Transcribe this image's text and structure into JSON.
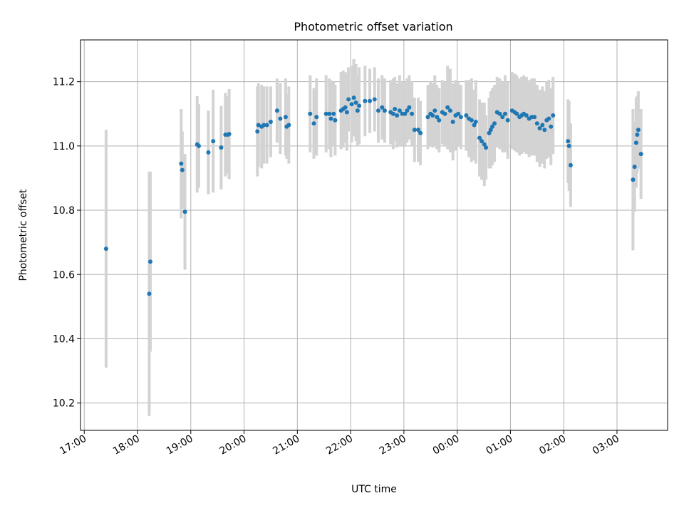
{
  "chart_data": {
    "type": "scatter",
    "title": "Photometric offset variation",
    "xlabel": "UTC time",
    "ylabel": "Photometric offset",
    "x_unit": "hours since 17:00 UTC",
    "xlim": [
      -0.07,
      10.95
    ],
    "ylim": [
      10.115,
      11.33
    ],
    "x_ticks": [
      {
        "value": 0,
        "label": "17:00"
      },
      {
        "value": 1,
        "label": "18:00"
      },
      {
        "value": 2,
        "label": "19:00"
      },
      {
        "value": 3,
        "label": "20:00"
      },
      {
        "value": 4,
        "label": "21:00"
      },
      {
        "value": 5,
        "label": "22:00"
      },
      {
        "value": 6,
        "label": "23:00"
      },
      {
        "value": 7,
        "label": "00:00"
      },
      {
        "value": 8,
        "label": "01:00"
      },
      {
        "value": 9,
        "label": "02:00"
      },
      {
        "value": 10,
        "label": "03:00"
      }
    ],
    "y_ticks": [
      {
        "value": 10.2,
        "label": "10.2"
      },
      {
        "value": 10.4,
        "label": "10.4"
      },
      {
        "value": 10.6,
        "label": "10.6"
      },
      {
        "value": 10.8,
        "label": "10.8"
      },
      {
        "value": 11.0,
        "label": "11.0"
      },
      {
        "value": 11.2,
        "label": "11.2"
      }
    ],
    "grid": true,
    "series": [
      {
        "name": "offset",
        "color": "#1f77b4",
        "error_color": "#d3d3d3",
        "points": [
          [
            0.41,
            10.68,
            0.37
          ],
          [
            1.22,
            10.54,
            0.38
          ],
          [
            1.24,
            10.64,
            0.28
          ],
          [
            1.82,
            10.945,
            0.17
          ],
          [
            1.84,
            10.925,
            0.12
          ],
          [
            1.89,
            10.795,
            0.18
          ],
          [
            2.12,
            11.005,
            0.15
          ],
          [
            2.15,
            11.0,
            0.13
          ],
          [
            2.33,
            10.98,
            0.13
          ],
          [
            2.42,
            11.015,
            0.16
          ],
          [
            2.57,
            10.995,
            0.13
          ],
          [
            2.65,
            11.035,
            0.13
          ],
          [
            2.7,
            11.035,
            0.12
          ],
          [
            2.72,
            11.037,
            0.14
          ],
          [
            3.25,
            11.045,
            0.14
          ],
          [
            3.27,
            11.065,
            0.13
          ],
          [
            3.33,
            11.06,
            0.13
          ],
          [
            3.37,
            11.065,
            0.12
          ],
          [
            3.43,
            11.065,
            0.12
          ],
          [
            3.5,
            11.075,
            0.11
          ],
          [
            3.62,
            11.11,
            0.1
          ],
          [
            3.68,
            11.085,
            0.11
          ],
          [
            3.78,
            11.09,
            0.12
          ],
          [
            3.8,
            11.06,
            0.1
          ],
          [
            3.84,
            11.065,
            0.12
          ],
          [
            4.24,
            11.1,
            0.12
          ],
          [
            4.31,
            11.07,
            0.11
          ],
          [
            4.36,
            11.09,
            0.12
          ],
          [
            4.54,
            11.1,
            0.12
          ],
          [
            4.6,
            11.1,
            0.11
          ],
          [
            4.63,
            11.085,
            0.12
          ],
          [
            4.68,
            11.1,
            0.1
          ],
          [
            4.71,
            11.08,
            0.11
          ],
          [
            4.82,
            11.11,
            0.12
          ],
          [
            4.86,
            11.115,
            0.12
          ],
          [
            4.9,
            11.12,
            0.11
          ],
          [
            4.93,
            11.105,
            0.12
          ],
          [
            4.96,
            11.145,
            0.1
          ],
          [
            5.02,
            11.13,
            0.12
          ],
          [
            5.06,
            11.15,
            0.12
          ],
          [
            5.1,
            11.135,
            0.12
          ],
          [
            5.13,
            11.11,
            0.11
          ],
          [
            5.16,
            11.125,
            0.12
          ],
          [
            5.27,
            11.14,
            0.11
          ],
          [
            5.36,
            11.14,
            0.1
          ],
          [
            5.45,
            11.145,
            0.1
          ],
          [
            5.52,
            11.11,
            0.1
          ],
          [
            5.59,
            11.12,
            0.1
          ],
          [
            5.64,
            11.11,
            0.1
          ],
          [
            5.75,
            11.105,
            0.1
          ],
          [
            5.8,
            11.1,
            0.11
          ],
          [
            5.83,
            11.115,
            0.1
          ],
          [
            5.87,
            11.095,
            0.1
          ],
          [
            5.92,
            11.11,
            0.11
          ],
          [
            5.97,
            11.1,
            0.1
          ],
          [
            6.02,
            11.1,
            0.1
          ],
          [
            6.06,
            11.11,
            0.1
          ],
          [
            6.1,
            11.12,
            0.1
          ],
          [
            6.15,
            11.1,
            0.1
          ],
          [
            6.2,
            11.05,
            0.1
          ],
          [
            6.27,
            11.05,
            0.1
          ],
          [
            6.31,
            11.04,
            0.1
          ],
          [
            6.45,
            11.09,
            0.1
          ],
          [
            6.5,
            11.1,
            0.1
          ],
          [
            6.54,
            11.095,
            0.1
          ],
          [
            6.58,
            11.11,
            0.11
          ],
          [
            6.62,
            11.09,
            0.1
          ],
          [
            6.66,
            11.08,
            0.1
          ],
          [
            6.72,
            11.105,
            0.1
          ],
          [
            6.77,
            11.1,
            0.1
          ],
          [
            6.82,
            11.12,
            0.13
          ],
          [
            6.87,
            11.11,
            0.13
          ],
          [
            6.92,
            11.075,
            0.12
          ],
          [
            6.97,
            11.095,
            0.11
          ],
          [
            7.02,
            11.1,
            0.1
          ],
          [
            7.07,
            11.09,
            0.1
          ],
          [
            7.17,
            11.095,
            0.11
          ],
          [
            7.22,
            11.085,
            0.12
          ],
          [
            7.27,
            11.08,
            0.13
          ],
          [
            7.32,
            11.065,
            0.11
          ],
          [
            7.35,
            11.075,
            0.13
          ],
          [
            7.42,
            11.025,
            0.12
          ],
          [
            7.46,
            11.015,
            0.12
          ],
          [
            7.51,
            11.005,
            0.13
          ],
          [
            7.54,
            10.995,
            0.1
          ],
          [
            7.6,
            11.04,
            0.11
          ],
          [
            7.63,
            11.05,
            0.12
          ],
          [
            7.66,
            11.06,
            0.12
          ],
          [
            7.7,
            11.07,
            0.12
          ],
          [
            7.75,
            11.105,
            0.11
          ],
          [
            7.8,
            11.1,
            0.11
          ],
          [
            7.85,
            11.09,
            0.11
          ],
          [
            7.9,
            11.1,
            0.12
          ],
          [
            7.95,
            11.08,
            0.12
          ],
          [
            8.03,
            11.11,
            0.12
          ],
          [
            8.08,
            11.105,
            0.12
          ],
          [
            8.12,
            11.1,
            0.12
          ],
          [
            8.17,
            11.09,
            0.12
          ],
          [
            8.21,
            11.095,
            0.12
          ],
          [
            8.25,
            11.1,
            0.12
          ],
          [
            8.3,
            11.095,
            0.12
          ],
          [
            8.35,
            11.085,
            0.12
          ],
          [
            8.4,
            11.09,
            0.12
          ],
          [
            8.45,
            11.09,
            0.12
          ],
          [
            8.5,
            11.07,
            0.12
          ],
          [
            8.55,
            11.055,
            0.12
          ],
          [
            8.6,
            11.065,
            0.12
          ],
          [
            8.64,
            11.05,
            0.12
          ],
          [
            8.68,
            11.08,
            0.12
          ],
          [
            8.72,
            11.085,
            0.12
          ],
          [
            8.76,
            11.06,
            0.12
          ],
          [
            8.8,
            11.095,
            0.12
          ],
          [
            9.08,
            11.015,
            0.13
          ],
          [
            9.1,
            11.0,
            0.14
          ],
          [
            9.13,
            10.94,
            0.13
          ],
          [
            10.3,
            10.895,
            0.22
          ],
          [
            10.33,
            10.935,
            0.14
          ],
          [
            10.36,
            11.01,
            0.14
          ],
          [
            10.38,
            11.035,
            0.12
          ],
          [
            10.4,
            11.05,
            0.12
          ],
          [
            10.45,
            10.975,
            0.14
          ]
        ]
      }
    ]
  }
}
